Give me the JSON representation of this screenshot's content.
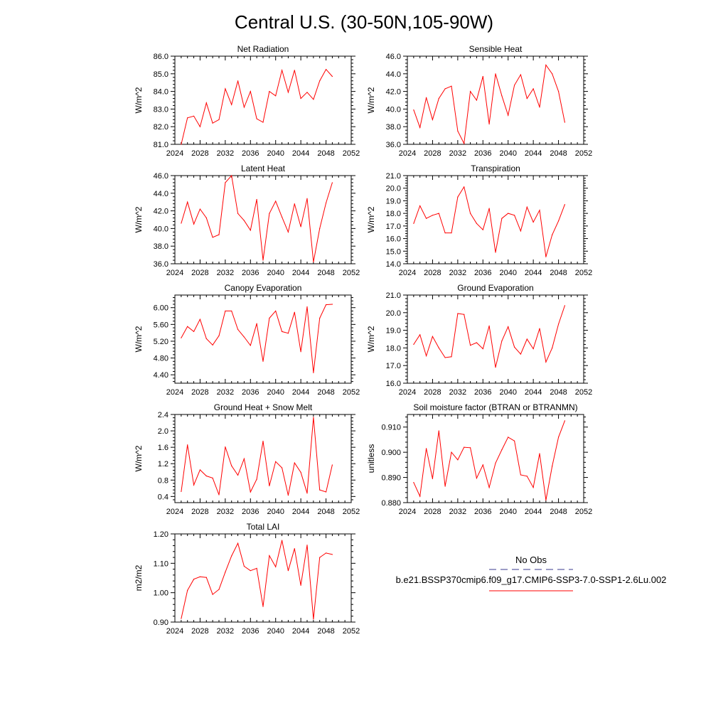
{
  "title": "Central U.S. (30-50N,105-90W)",
  "colors": {
    "model_line": "#ff0000",
    "obs_line": "#3b3b8f",
    "axis": "#000000"
  },
  "legend": {
    "obs_label": "No Obs",
    "model_label": "b.e21.BSSP370cmip6.f09_g17.CMIP6-SSP3-7.0-SSP1-2.6Lu.002"
  },
  "chart_data": [
    {
      "type": "line",
      "title": "Net Radiation",
      "xlabel": "",
      "ylabel": "W/m^2",
      "xlim": [
        2024,
        2052
      ],
      "ylim": [
        81.0,
        86.0
      ],
      "xticks": [
        "2024",
        "2028",
        "2032",
        "2036",
        "2040",
        "2044",
        "2048",
        "2052"
      ],
      "yticks": [
        "81.0",
        "82.0",
        "83.0",
        "84.0",
        "85.0",
        "86.0"
      ],
      "x": [
        2025,
        2026,
        2027,
        2028,
        2029,
        2030,
        2031,
        2032,
        2033,
        2034,
        2035,
        2036,
        2037,
        2038,
        2039,
        2040,
        2041,
        2042,
        2043,
        2044,
        2045,
        2046,
        2047,
        2048,
        2049
      ],
      "series": [
        {
          "values": [
            81.0,
            82.5,
            82.6,
            82.0,
            83.35,
            82.2,
            82.4,
            84.15,
            83.25,
            84.6,
            83.1,
            84.0,
            82.45,
            82.25,
            84.0,
            83.75,
            85.2,
            83.95,
            85.2,
            83.6,
            83.95,
            83.55,
            84.6,
            85.25,
            84.85
          ]
        }
      ]
    },
    {
      "type": "line",
      "title": "Sensible Heat",
      "xlabel": "",
      "ylabel": "W/m^2",
      "xlim": [
        2024,
        2052
      ],
      "ylim": [
        36.0,
        46.0
      ],
      "xticks": [
        "2024",
        "2028",
        "2032",
        "2036",
        "2040",
        "2044",
        "2048",
        "2052"
      ],
      "yticks": [
        "36.0",
        "38.0",
        "40.0",
        "42.0",
        "44.0",
        "46.0"
      ],
      "x": [
        2025,
        2026,
        2027,
        2028,
        2029,
        2030,
        2031,
        2032,
        2033,
        2034,
        2035,
        2036,
        2037,
        2038,
        2039,
        2040,
        2041,
        2042,
        2043,
        2044,
        2045,
        2046,
        2047,
        2048,
        2049
      ],
      "series": [
        {
          "values": [
            39.9,
            37.9,
            41.3,
            38.8,
            41.2,
            42.3,
            42.6,
            37.5,
            36.1,
            42.0,
            41.0,
            43.7,
            38.3,
            44.0,
            41.5,
            39.3,
            42.7,
            43.9,
            41.2,
            42.3,
            40.2,
            45.0,
            44.0,
            42.0,
            38.5
          ]
        }
      ]
    },
    {
      "type": "line",
      "title": "Latent Heat",
      "xlabel": "",
      "ylabel": "W/m^2",
      "xlim": [
        2024,
        2052
      ],
      "ylim": [
        36.0,
        46.0
      ],
      "xticks": [
        "2024",
        "2028",
        "2032",
        "2036",
        "2040",
        "2044",
        "2048",
        "2052"
      ],
      "yticks": [
        "36.0",
        "38.0",
        "40.0",
        "42.0",
        "44.0",
        "46.0"
      ],
      "x": [
        2025,
        2026,
        2027,
        2028,
        2029,
        2030,
        2031,
        2032,
        2033,
        2034,
        2035,
        2036,
        2037,
        2038,
        2039,
        2040,
        2041,
        2042,
        2043,
        2044,
        2045,
        2046,
        2047,
        2048,
        2049
      ],
      "series": [
        {
          "values": [
            40.6,
            43.0,
            40.5,
            42.2,
            41.2,
            39.0,
            39.3,
            45.2,
            46.0,
            41.7,
            40.9,
            39.8,
            43.3,
            36.4,
            41.7,
            43.1,
            41.3,
            39.6,
            42.8,
            40.2,
            43.4,
            36.2,
            40.0,
            42.9,
            45.2
          ]
        }
      ]
    },
    {
      "type": "line",
      "title": "Transpiration",
      "xlabel": "",
      "ylabel": "W/m^2",
      "xlim": [
        2024,
        2052
      ],
      "ylim": [
        14.0,
        21.0
      ],
      "xticks": [
        "2024",
        "2028",
        "2032",
        "2036",
        "2040",
        "2044",
        "2048",
        "2052"
      ],
      "yticks": [
        "14.0",
        "15.0",
        "16.0",
        "17.0",
        "18.0",
        "19.0",
        "20.0",
        "21.0"
      ],
      "x": [
        2025,
        2026,
        2027,
        2028,
        2029,
        2030,
        2031,
        2032,
        2033,
        2034,
        2035,
        2036,
        2037,
        2038,
        2039,
        2040,
        2041,
        2042,
        2043,
        2044,
        2045,
        2046,
        2047,
        2048,
        2049
      ],
      "series": [
        {
          "values": [
            17.2,
            18.6,
            17.6,
            17.85,
            18.0,
            16.45,
            16.45,
            19.3,
            20.1,
            18.0,
            17.2,
            16.7,
            18.4,
            14.9,
            17.6,
            18.0,
            17.85,
            16.6,
            18.5,
            17.3,
            18.25,
            14.55,
            16.3,
            17.4,
            18.7
          ]
        }
      ]
    },
    {
      "type": "line",
      "title": "Canopy Evaporation",
      "xlabel": "",
      "ylabel": "W/m^2",
      "xlim": [
        2024,
        2052
      ],
      "ylim": [
        4.2,
        6.3
      ],
      "xticks": [
        "2024",
        "2028",
        "2032",
        "2036",
        "2040",
        "2044",
        "2048",
        "2052"
      ],
      "yticks": [
        "4.40",
        "4.80",
        "5.20",
        "5.60",
        "6.00"
      ],
      "x": [
        2025,
        2026,
        2027,
        2028,
        2029,
        2030,
        2031,
        2032,
        2033,
        2034,
        2035,
        2036,
        2037,
        2038,
        2039,
        2040,
        2041,
        2042,
        2043,
        2044,
        2045,
        2046,
        2047,
        2048,
        2049
      ],
      "series": [
        {
          "values": [
            5.28,
            5.55,
            5.43,
            5.72,
            5.26,
            5.11,
            5.33,
            5.92,
            5.92,
            5.48,
            5.3,
            5.1,
            5.62,
            4.72,
            5.75,
            5.92,
            5.43,
            5.39,
            5.89,
            4.95,
            6.02,
            4.45,
            5.75,
            6.07,
            6.08
          ]
        }
      ]
    },
    {
      "type": "line",
      "title": "Ground Evaporation",
      "xlabel": "",
      "ylabel": "W/m^2",
      "xlim": [
        2024,
        2052
      ],
      "ylim": [
        16.0,
        21.0
      ],
      "xticks": [
        "2024",
        "2028",
        "2032",
        "2036",
        "2040",
        "2044",
        "2048",
        "2052"
      ],
      "yticks": [
        "16.0",
        "17.0",
        "18.0",
        "19.0",
        "20.0",
        "21.0"
      ],
      "x": [
        2025,
        2026,
        2027,
        2028,
        2029,
        2030,
        2031,
        2032,
        2033,
        2034,
        2035,
        2036,
        2037,
        2038,
        2039,
        2040,
        2041,
        2042,
        2043,
        2044,
        2045,
        2046,
        2047,
        2048,
        2049
      ],
      "series": [
        {
          "values": [
            18.2,
            18.75,
            17.55,
            18.65,
            18.0,
            17.45,
            17.5,
            19.95,
            19.9,
            18.15,
            18.3,
            17.95,
            19.25,
            16.9,
            18.4,
            19.2,
            18.05,
            17.65,
            18.5,
            17.95,
            19.1,
            17.2,
            18.0,
            19.35,
            20.4
          ]
        }
      ]
    },
    {
      "type": "line",
      "title": "Ground Heat + Snow Melt",
      "xlabel": "",
      "ylabel": "W/m^2",
      "xlim": [
        2024,
        2052
      ],
      "ylim": [
        0.25,
        2.4
      ],
      "xticks": [
        "2024",
        "2028",
        "2032",
        "2036",
        "2040",
        "2044",
        "2048",
        "2052"
      ],
      "yticks": [
        "0.4",
        "0.8",
        "1.2",
        "1.6",
        "2.0",
        "2.4"
      ],
      "x": [
        2025,
        2026,
        2027,
        2028,
        2029,
        2030,
        2031,
        2032,
        2033,
        2034,
        2035,
        2036,
        2037,
        2038,
        2039,
        2040,
        2041,
        2042,
        2043,
        2044,
        2045,
        2046,
        2047,
        2048,
        2049
      ],
      "series": [
        {
          "values": [
            0.52,
            1.66,
            0.68,
            1.05,
            0.9,
            0.85,
            0.44,
            1.61,
            1.15,
            0.92,
            1.32,
            0.51,
            0.82,
            1.75,
            0.66,
            1.25,
            1.1,
            0.43,
            1.22,
            0.99,
            0.48,
            2.33,
            0.56,
            0.51,
            1.17
          ]
        }
      ]
    },
    {
      "type": "line",
      "title": "Soil moisture factor (BTRAN or BTRANMN)",
      "xlabel": "",
      "ylabel": "unitless",
      "xlim": [
        2024,
        2052
      ],
      "ylim": [
        0.88,
        0.915
      ],
      "xticks": [
        "2024",
        "2028",
        "2032",
        "2036",
        "2040",
        "2044",
        "2048",
        "2052"
      ],
      "yticks": [
        "0.880",
        "0.890",
        "0.900",
        "0.910"
      ],
      "x": [
        2025,
        2026,
        2027,
        2028,
        2029,
        2030,
        2031,
        2032,
        2033,
        2034,
        2035,
        2036,
        2037,
        2038,
        2039,
        2040,
        2041,
        2042,
        2043,
        2044,
        2045,
        2046,
        2047,
        2048,
        2049
      ],
      "series": [
        {
          "values": [
            0.888,
            0.8825,
            0.9015,
            0.8895,
            0.9085,
            0.8865,
            0.9,
            0.897,
            0.902,
            0.9018,
            0.8897,
            0.895,
            0.886,
            0.8957,
            0.901,
            0.906,
            0.9045,
            0.891,
            0.8905,
            0.886,
            0.8995,
            0.881,
            0.8945,
            0.906,
            0.9125
          ]
        }
      ]
    },
    {
      "type": "line",
      "title": "Total LAI",
      "xlabel": "",
      "ylabel": "m2/m2",
      "xlim": [
        2024,
        2052
      ],
      "ylim": [
        0.9,
        1.2
      ],
      "xticks": [
        "2024",
        "2028",
        "2032",
        "2036",
        "2040",
        "2044",
        "2048",
        "2052"
      ],
      "yticks": [
        "0.90",
        "1.00",
        "1.10",
        "1.20"
      ],
      "x": [
        2025,
        2026,
        2027,
        2028,
        2029,
        2030,
        2031,
        2032,
        2033,
        2034,
        2035,
        2036,
        2037,
        2038,
        2039,
        2040,
        2041,
        2042,
        2043,
        2044,
        2045,
        2046,
        2047,
        2048,
        2049
      ],
      "series": [
        {
          "values": [
            0.912,
            1.008,
            1.046,
            1.054,
            1.052,
            0.994,
            1.011,
            1.07,
            1.125,
            1.168,
            1.09,
            1.075,
            1.083,
            0.953,
            1.126,
            1.088,
            1.178,
            1.075,
            1.15,
            1.025,
            1.162,
            0.91,
            1.12,
            1.135,
            1.13
          ]
        }
      ]
    }
  ]
}
